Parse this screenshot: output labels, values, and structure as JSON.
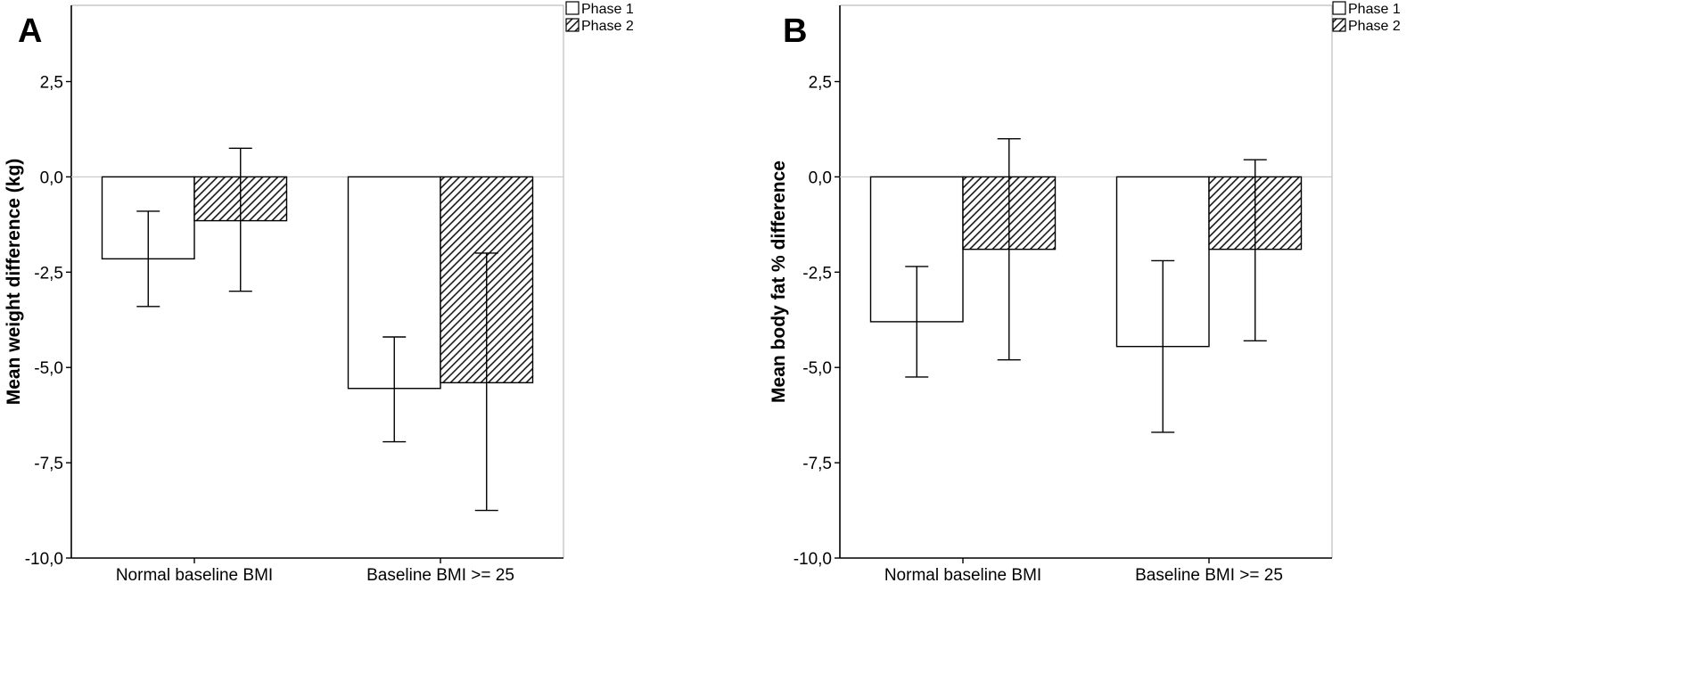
{
  "chart_data": [
    {
      "type": "bar",
      "panel_label": "A",
      "categories": [
        "Normal baseline BMI",
        "Baseline BMI >= 25"
      ],
      "ylabel": "Mean weight difference (kg)",
      "xlabel": "",
      "ylim": [
        -10,
        4.5
      ],
      "yticks": [
        2.5,
        0.0,
        -2.5,
        -5.0,
        -7.5,
        -10.0
      ],
      "ytick_labels": [
        "2,5",
        "0,0",
        "-2,5",
        "-5,0",
        "-7,5",
        "-10,0"
      ],
      "reference_line": 0,
      "legend_position": "top-right",
      "series": [
        {
          "name": "Phase 1",
          "fill": "white",
          "values": [
            -2.15,
            -5.55
          ],
          "error_low": [
            -3.4,
            -6.95
          ],
          "error_high": [
            -0.9,
            -4.2
          ]
        },
        {
          "name": "Phase 2",
          "fill": "hatched",
          "values": [
            -1.15,
            -5.4
          ],
          "error_low": [
            -3.0,
            -8.75
          ],
          "error_high": [
            0.75,
            -2.0
          ]
        }
      ]
    },
    {
      "type": "bar",
      "panel_label": "B",
      "categories": [
        "Normal baseline BMI",
        "Baseline BMI >= 25"
      ],
      "ylabel": "Mean body fat % difference",
      "xlabel": "",
      "ylim": [
        -10,
        4.5
      ],
      "yticks": [
        2.5,
        0.0,
        -2.5,
        -5.0,
        -7.5,
        -10.0
      ],
      "ytick_labels": [
        "2,5",
        "0,0",
        "-2,5",
        "-5,0",
        "-7,5",
        "-10,0"
      ],
      "reference_line": 0,
      "legend_position": "top-right",
      "series": [
        {
          "name": "Phase 1",
          "fill": "white",
          "values": [
            -3.8,
            -4.45
          ],
          "error_low": [
            -5.25,
            -6.7
          ],
          "error_high": [
            -2.35,
            -2.2
          ]
        },
        {
          "name": "Phase 2",
          "fill": "hatched",
          "values": [
            -1.9,
            -1.9
          ],
          "error_low": [
            -4.8,
            -4.3
          ],
          "error_high": [
            1.0,
            0.45
          ]
        }
      ]
    }
  ],
  "colors": {
    "stroke": "#000000",
    "frame": "#bdbdbd",
    "reference_line": "#c8c8c8",
    "hatch_bg": "#ffffff",
    "hatch_line": "#1a1a1a"
  }
}
